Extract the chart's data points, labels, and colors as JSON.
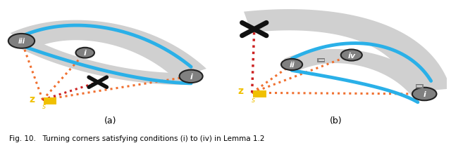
{
  "fig_width": 6.4,
  "fig_height": 2.05,
  "dpi": 100,
  "background_color": "#ffffff",
  "caption": "Fig. 10.   Turning corners satisfying conditions (i) to (iv) in Lemma 1.2",
  "panel_a_label": "(a)",
  "panel_b_label": "(b)",
  "gray_node_color": "#808080",
  "gray_node_edge": "#222222",
  "blue_path_color": "#2ab0e8",
  "orange_dotted_color": "#f07030",
  "red_dotted_color": "#cc2222",
  "gray_band_color": "#d0d0d0",
  "yellow_diamond_color": "#f0c000",
  "gray_square_color": "#808080",
  "cross_color": "#111111"
}
